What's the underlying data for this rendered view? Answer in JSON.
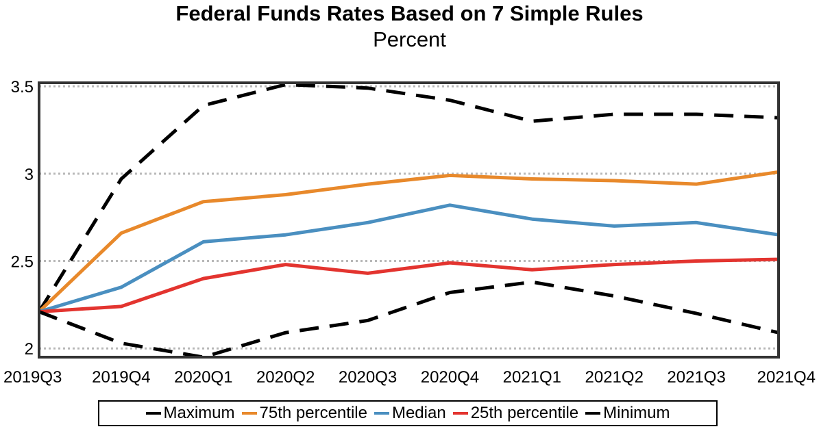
{
  "chart_data": {
    "type": "line",
    "title": "Federal Funds Rates Based on 7 Simple Rules",
    "subtitle": "Percent",
    "xlabel": "",
    "ylabel": "",
    "categories": [
      "2019Q3",
      "2019Q4",
      "2020Q1",
      "2020Q2",
      "2020Q3",
      "2020Q4",
      "2021Q1",
      "2021Q2",
      "2021Q3",
      "2021Q4"
    ],
    "ylim": [
      1.95,
      3.52
    ],
    "yticks": [
      2,
      2.5,
      3,
      3.5
    ],
    "ytick_labels": [
      "2",
      "2.5",
      "3",
      "3.5"
    ],
    "grid": "horizontal dotted",
    "legend_position": "bottom",
    "series": [
      {
        "name": "Maximum",
        "color": "#000000",
        "style": "dashed",
        "values": [
          2.21,
          2.97,
          3.39,
          3.51,
          3.49,
          3.42,
          3.3,
          3.34,
          3.34,
          3.32
        ]
      },
      {
        "name": "75th percentile",
        "color": "#E8892B",
        "style": "solid",
        "values": [
          2.21,
          2.66,
          2.84,
          2.88,
          2.94,
          2.99,
          2.97,
          2.96,
          2.94,
          3.01
        ]
      },
      {
        "name": "Median",
        "color": "#4A8FC0",
        "style": "solid",
        "values": [
          2.21,
          2.35,
          2.61,
          2.65,
          2.72,
          2.82,
          2.74,
          2.7,
          2.72,
          2.65
        ]
      },
      {
        "name": "25th percentile",
        "color": "#E3342F",
        "style": "solid",
        "values": [
          2.21,
          2.24,
          2.4,
          2.48,
          2.43,
          2.49,
          2.45,
          2.48,
          2.5,
          2.51
        ]
      },
      {
        "name": "Minimum",
        "color": "#000000",
        "style": "dashed",
        "values": [
          2.21,
          2.03,
          1.95,
          2.09,
          2.16,
          2.32,
          2.38,
          2.3,
          2.2,
          2.09
        ]
      }
    ]
  }
}
